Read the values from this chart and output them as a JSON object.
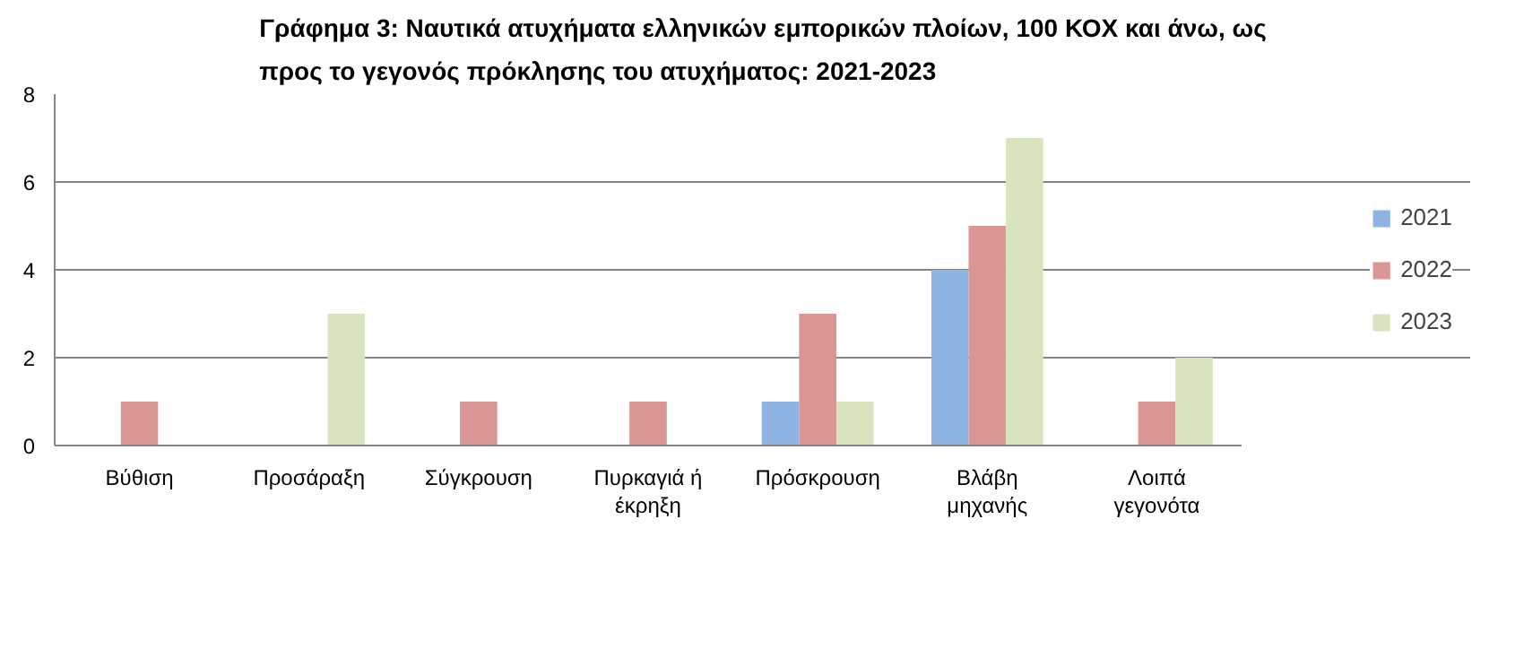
{
  "chart_data": {
    "type": "bar",
    "title": "Γράφημα 3: Ναυτικά ατυχήματα ελληνικών εμπορικών πλοίων, 100 ΚΟΧ και άνω, ως\nπρος το γεγονός πρόκλησης του ατυχήματος: 2021-2023",
    "categories": [
      "Βύθιση",
      "Προσάραξη",
      "Σύγκρουση",
      "Πυρκαγιά ή\nέκρηξη",
      "Πρόσκρουση",
      "Βλάβη\nμηχανής",
      "Λοιπά\nγεγονότα"
    ],
    "series": [
      {
        "name": "2021",
        "color": "#8eb4e3",
        "values": [
          0,
          0,
          0,
          0,
          1,
          4,
          0
        ]
      },
      {
        "name": "2022",
        "color": "#d99694",
        "values": [
          1,
          0,
          1,
          1,
          3,
          5,
          1
        ]
      },
      {
        "name": "2023",
        "color": "#d7e4bd",
        "values": [
          0,
          3,
          0,
          0,
          1,
          7,
          2
        ]
      }
    ],
    "ylim": [
      0,
      8
    ],
    "yticks": [
      0,
      2,
      4,
      6,
      8
    ],
    "grid": "y",
    "legend": "right"
  }
}
